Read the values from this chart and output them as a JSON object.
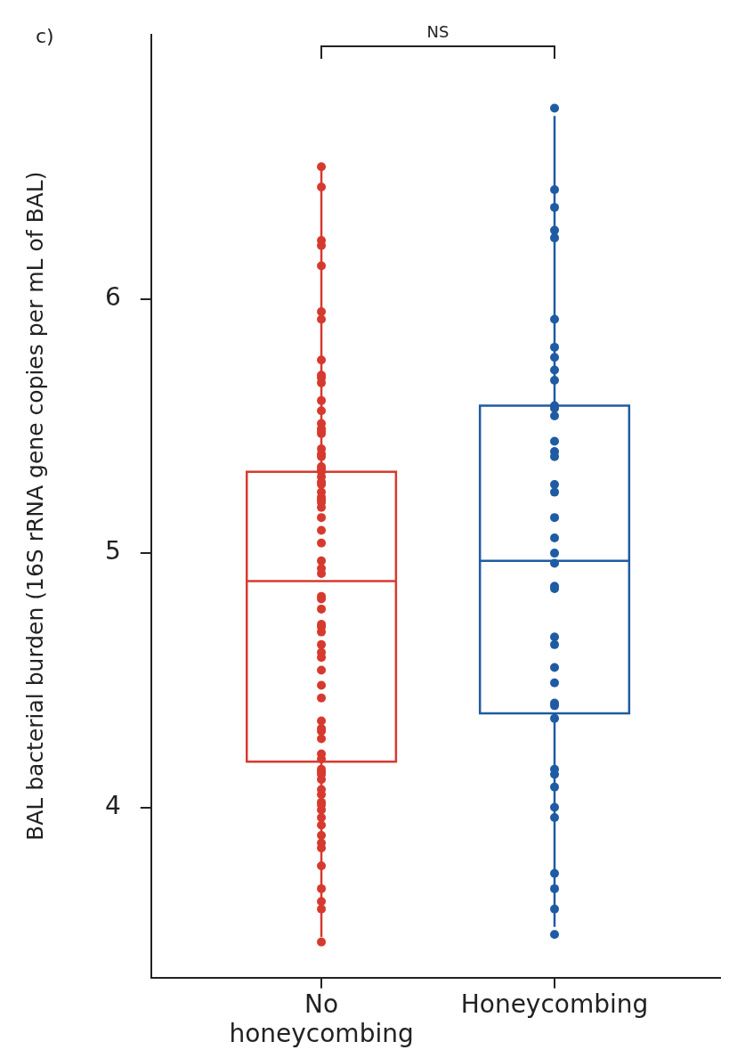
{
  "chart_data": {
    "type": "box",
    "ylabel": "BAL bacterial burden (16S rRNA gene copies per mL of BAL)",
    "categories": [
      "No honeycombing",
      "Honeycombing"
    ],
    "colors": [
      "#d63a2f",
      "#1f5ba3"
    ],
    "boxes": [
      {
        "low": 3.49,
        "q1": 4.18,
        "median": 4.89,
        "q3": 5.32,
        "high": 6.52
      },
      {
        "low": 3.53,
        "q1": 4.37,
        "median": 4.97,
        "q3": 5.58,
        "high": 6.72
      }
    ],
    "series": [
      {
        "type": "scatter",
        "color": "#d63a2f",
        "x": [
          "No honeycombing",
          "No honeycombing",
          "No honeycombing",
          "No honeycombing",
          "No honeycombing",
          "No honeycombing",
          "No honeycombing",
          "No honeycombing",
          "No honeycombing",
          "No honeycombing",
          "No honeycombing",
          "No honeycombing",
          "No honeycombing",
          "No honeycombing",
          "No honeycombing",
          "No honeycombing",
          "No honeycombing",
          "No honeycombing",
          "No honeycombing",
          "No honeycombing",
          "No honeycombing",
          "No honeycombing",
          "No honeycombing",
          "No honeycombing",
          "No honeycombing",
          "No honeycombing",
          "No honeycombing",
          "No honeycombing",
          "No honeycombing",
          "No honeycombing",
          "No honeycombing",
          "No honeycombing",
          "No honeycombing",
          "No honeycombing",
          "No honeycombing",
          "No honeycombing",
          "No honeycombing",
          "No honeycombing",
          "No honeycombing",
          "No honeycombing",
          "No honeycombing",
          "No honeycombing",
          "No honeycombing",
          "No honeycombing",
          "No honeycombing",
          "No honeycombing",
          "No honeycombing",
          "No honeycombing",
          "No honeycombing",
          "No honeycombing",
          "No honeycombing",
          "No honeycombing",
          "No honeycombing",
          "No honeycombing",
          "No honeycombing",
          "No honeycombing",
          "No honeycombing",
          "No honeycombing",
          "No honeycombing",
          "No honeycombing",
          "No honeycombing",
          "No honeycombing",
          "No honeycombing",
          "No honeycombing",
          "No honeycombing",
          "No honeycombing",
          "No honeycombing",
          "No honeycombing",
          "No honeycombing",
          "No honeycombing",
          "No honeycombing",
          "No honeycombing",
          "No honeycombing",
          "No honeycombing"
        ],
        "values": [
          6.52,
          6.44,
          6.23,
          6.21,
          6.13,
          5.95,
          5.92,
          5.76,
          5.7,
          5.69,
          5.67,
          5.6,
          5.56,
          5.51,
          5.49,
          5.48,
          5.47,
          5.41,
          5.39,
          5.38,
          5.34,
          5.33,
          5.32,
          5.3,
          5.28,
          5.27,
          5.24,
          5.22,
          5.21,
          5.2,
          5.18,
          5.14,
          5.09,
          5.04,
          4.97,
          4.94,
          4.92,
          4.83,
          4.82,
          4.78,
          4.72,
          4.71,
          4.69,
          4.64,
          4.61,
          4.59,
          4.54,
          4.48,
          4.43,
          4.34,
          4.31,
          4.3,
          4.27,
          4.21,
          4.19,
          4.15,
          4.14,
          4.13,
          4.11,
          4.07,
          4.05,
          4.02,
          4.01,
          3.99,
          3.96,
          3.93,
          3.89,
          3.86,
          3.84,
          3.77,
          3.68,
          3.63,
          3.6,
          3.47
        ]
      },
      {
        "type": "scatter",
        "color": "#1f5ba3",
        "x": [
          "Honeycombing",
          "Honeycombing",
          "Honeycombing",
          "Honeycombing",
          "Honeycombing",
          "Honeycombing",
          "Honeycombing",
          "Honeycombing",
          "Honeycombing",
          "Honeycombing",
          "Honeycombing",
          "Honeycombing",
          "Honeycombing",
          "Honeycombing",
          "Honeycombing",
          "Honeycombing",
          "Honeycombing",
          "Honeycombing",
          "Honeycombing",
          "Honeycombing",
          "Honeycombing",
          "Honeycombing",
          "Honeycombing",
          "Honeycombing",
          "Honeycombing",
          "Honeycombing",
          "Honeycombing",
          "Honeycombing",
          "Honeycombing",
          "Honeycombing",
          "Honeycombing",
          "Honeycombing",
          "Honeycombing",
          "Honeycombing",
          "Honeycombing",
          "Honeycombing",
          "Honeycombing",
          "Honeycombing",
          "Honeycombing",
          "Honeycombing"
        ],
        "values": [
          6.75,
          6.43,
          6.36,
          6.27,
          6.24,
          5.92,
          5.81,
          5.77,
          5.72,
          5.68,
          5.58,
          5.57,
          5.54,
          5.44,
          5.4,
          5.38,
          5.27,
          5.24,
          5.14,
          5.06,
          5.0,
          4.96,
          4.87,
          4.86,
          4.67,
          4.64,
          4.55,
          4.49,
          4.41,
          4.4,
          4.35,
          4.15,
          4.13,
          4.08,
          4.0,
          3.96,
          3.74,
          3.68,
          3.6,
          3.5
        ]
      }
    ],
    "ylim": [
      3.33,
      7.04
    ],
    "yticks": [
      4,
      5,
      6
    ],
    "grid": false,
    "legend": false,
    "marker": "circle",
    "annotations": [
      "c)",
      "NS"
    ]
  }
}
